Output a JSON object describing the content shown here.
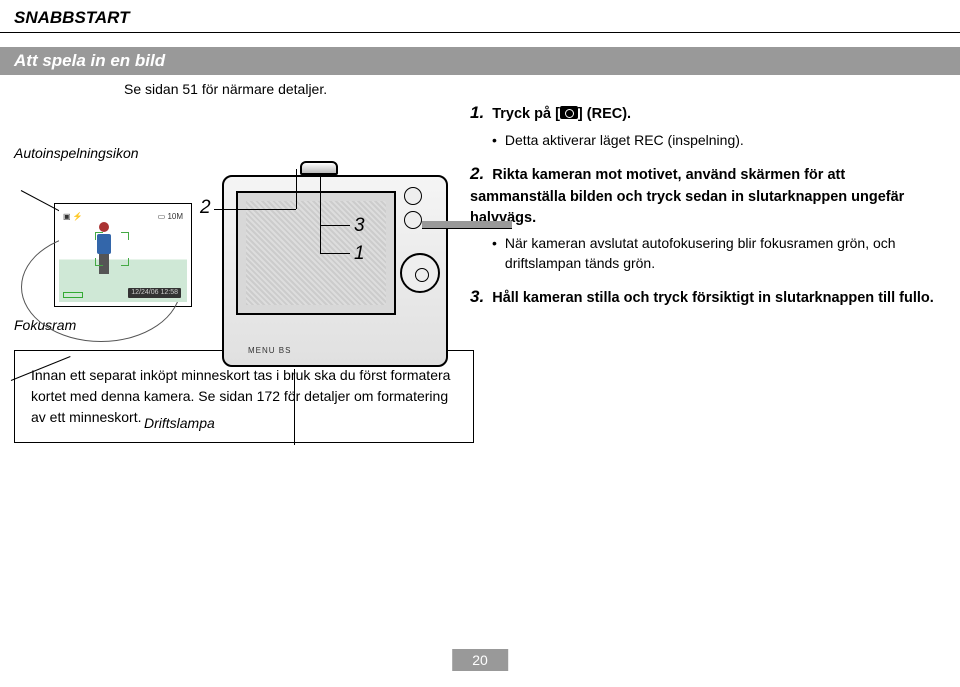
{
  "header": "SNABBSTART",
  "subtitle": "Att spela in en bild",
  "ref_line": "Se sidan 51 för närmare detaljer.",
  "annotations": {
    "auto_icon": "Autoinspelningsikon",
    "focus_frame": "Fokusram",
    "drive_lamp": "Driftslampa"
  },
  "diagram_numbers": {
    "n1": "1",
    "n2": "2",
    "n3": "3"
  },
  "cam_label": "MENU   BS",
  "preview_meta": "12/24/06\n12:58",
  "steps": [
    {
      "num": "1.",
      "main_pre": "Tryck på [",
      "main_post": "] (REC).",
      "bullets": [
        "Detta aktiverar läget REC (inspelning)."
      ]
    },
    {
      "num": "2.",
      "main": "Rikta kameran mot motivet, använd skärmen för att sammanställa bilden och tryck sedan in slutarknappen ungefär halvvägs.",
      "bullets": [
        "När kameran avslutat autofokusering blir fokusramen grön, och driftslampan tänds grön."
      ]
    },
    {
      "num": "3.",
      "main": "Håll kameran stilla och tryck försiktigt in slutarknappen till fullo.",
      "bullets": []
    }
  ],
  "note": "Innan ett separat inköpt minneskort tas i bruk ska du först formatera kortet med denna kamera. Se sidan 172 för detaljer om formatering av ett minneskort.",
  "page_number": "20",
  "colors": {
    "bar_bg": "#999999",
    "bar_text": "#ffffff",
    "text": "#000000"
  }
}
